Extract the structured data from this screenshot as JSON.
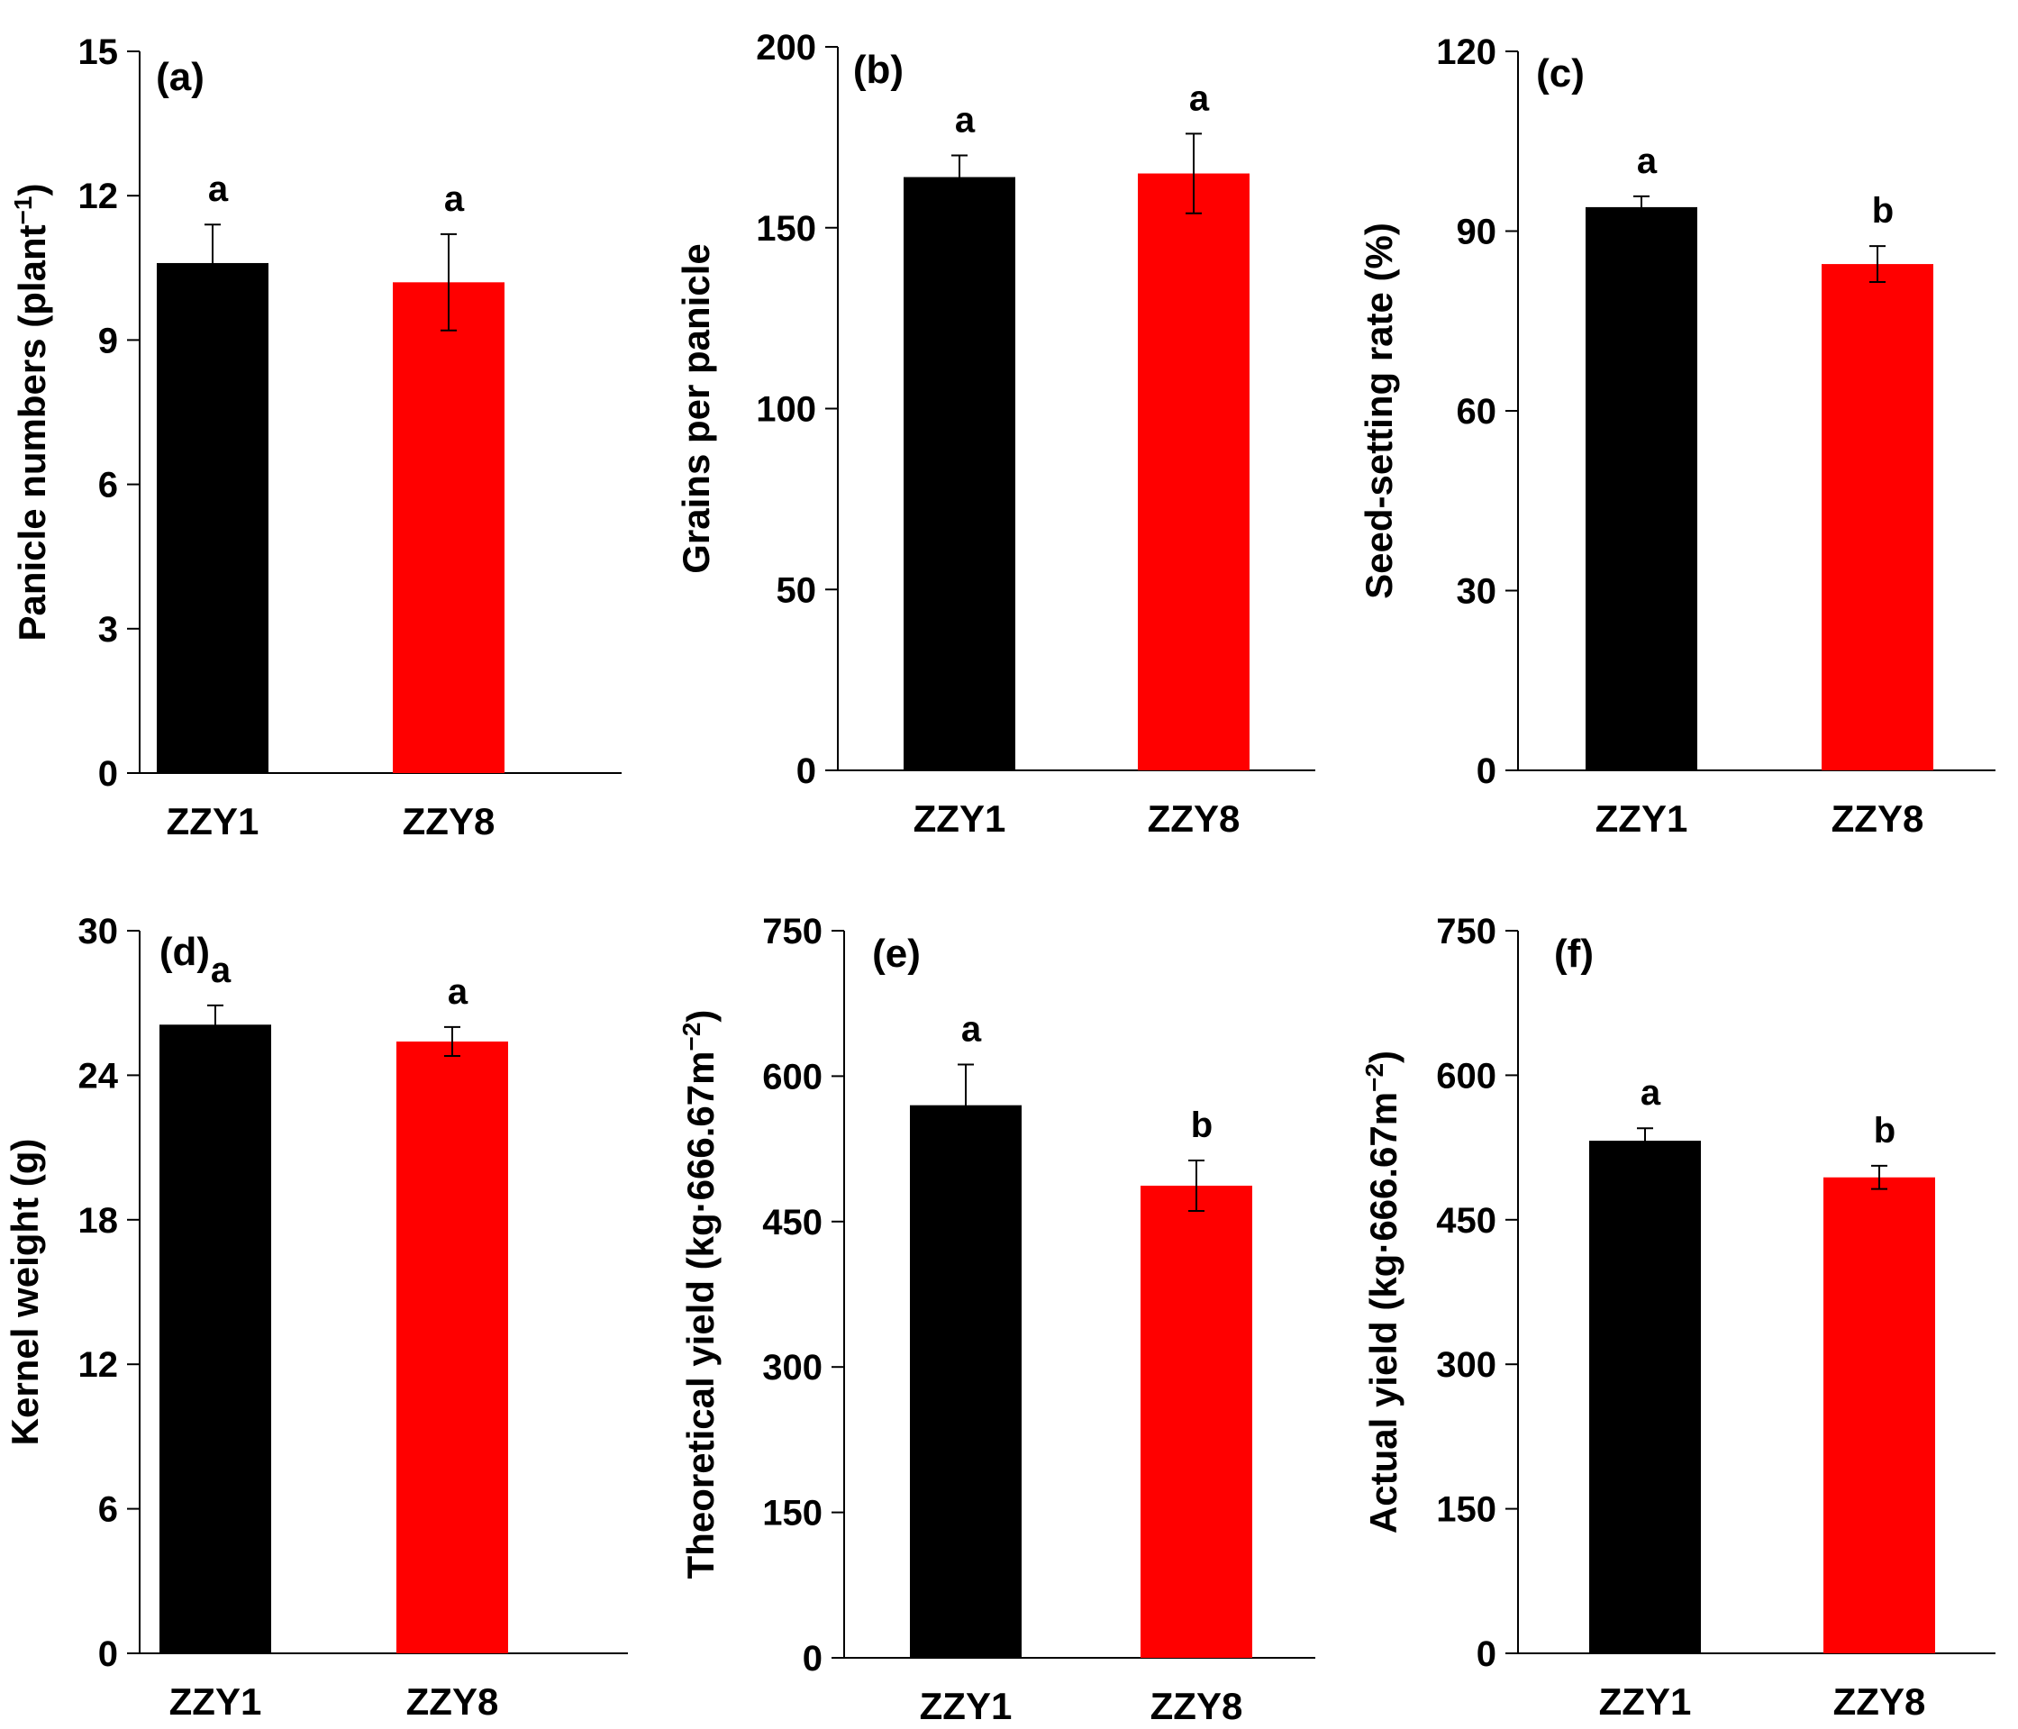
{
  "figure": {
    "description_panels": [
      "a",
      "b",
      "c",
      "d",
      "e",
      "f"
    ]
  },
  "chart_data": [
    {
      "type": "bar",
      "panel": "(a)",
      "ylabel": "Panicle numbers (plant",
      "ylabel_sup": "−1",
      "ylabel_tail": ")",
      "ylim": [
        0,
        15
      ],
      "yticks": [
        0,
        3,
        6,
        9,
        12,
        15
      ],
      "categories": [
        "ZZY1",
        "ZZY8"
      ],
      "values": [
        10.6,
        10.2
      ],
      "errors": [
        0.8,
        1.0
      ],
      "significance": [
        "a",
        "a"
      ],
      "colors": [
        "#000000",
        "#ff0000"
      ]
    },
    {
      "type": "bar",
      "panel": "(b)",
      "ylabel": "Grains per panicle",
      "ylabel_sup": "",
      "ylabel_tail": "",
      "ylim": [
        0,
        200
      ],
      "yticks": [
        0,
        50,
        100,
        150,
        200
      ],
      "categories": [
        "ZZY1",
        "ZZY8"
      ],
      "values": [
        164,
        165
      ],
      "errors": [
        6,
        11
      ],
      "significance": [
        "a",
        "a"
      ],
      "colors": [
        "#000000",
        "#ff0000"
      ]
    },
    {
      "type": "bar",
      "panel": "(c)",
      "ylabel": "Seed-setting rate (%)",
      "ylabel_sup": "",
      "ylabel_tail": "",
      "ylim": [
        0,
        120
      ],
      "yticks": [
        0,
        30,
        60,
        90,
        120
      ],
      "categories": [
        "ZZY1",
        "ZZY8"
      ],
      "values": [
        94,
        84.5
      ],
      "errors": [
        1.8,
        3
      ],
      "significance": [
        "a",
        "b"
      ],
      "colors": [
        "#000000",
        "#ff0000"
      ]
    },
    {
      "type": "bar",
      "panel": "(d)",
      "ylabel": "Kernel weight (g)",
      "ylabel_sup": "",
      "ylabel_tail": "",
      "ylim": [
        0,
        30
      ],
      "yticks": [
        0,
        6,
        12,
        18,
        24,
        30
      ],
      "categories": [
        "ZZY1",
        "ZZY8"
      ],
      "values": [
        26.1,
        25.4
      ],
      "errors": [
        0.8,
        0.6
      ],
      "significance": [
        "a",
        "a"
      ],
      "colors": [
        "#000000",
        "#ff0000"
      ]
    },
    {
      "type": "bar",
      "panel": "(e)",
      "ylabel": "Theoretical yield  (kg·666.67m",
      "ylabel_sup": "−2",
      "ylabel_tail": ")",
      "ylim": [
        0,
        750
      ],
      "yticks": [
        0,
        150,
        300,
        450,
        600,
        750
      ],
      "categories": [
        "ZZY1",
        "ZZY8"
      ],
      "values": [
        570,
        487
      ],
      "errors": [
        42,
        26
      ],
      "significance": [
        "a",
        "b"
      ],
      "colors": [
        "#000000",
        "#ff0000"
      ]
    },
    {
      "type": "bar",
      "panel": "(f)",
      "ylabel": "Actual yield  (kg·666.67m",
      "ylabel_sup": "−2",
      "ylabel_tail": ")",
      "ylim": [
        0,
        750
      ],
      "yticks": [
        0,
        150,
        300,
        450,
        600,
        750
      ],
      "categories": [
        "ZZY1",
        "ZZY8"
      ],
      "values": [
        532,
        494
      ],
      "errors": [
        13,
        12
      ],
      "significance": [
        "a",
        "b"
      ],
      "colors": [
        "#000000",
        "#ff0000"
      ]
    }
  ]
}
